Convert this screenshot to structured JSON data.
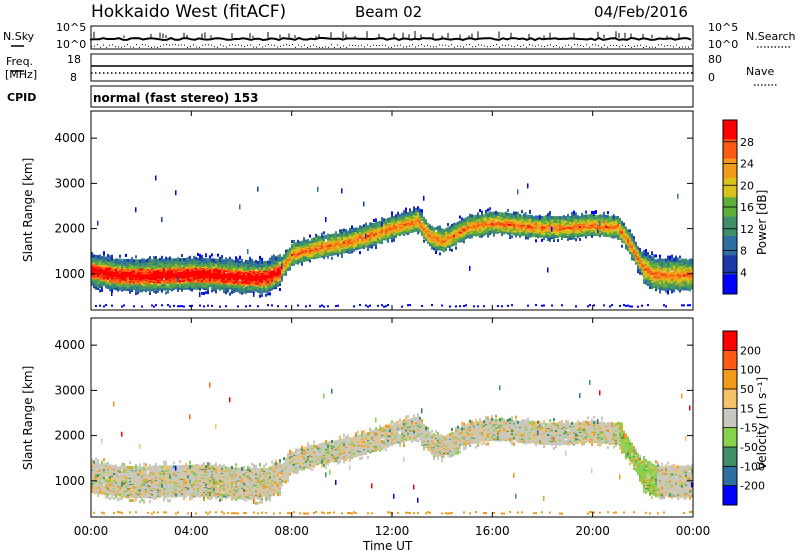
{
  "header": {
    "title": "Hokkaido West (fitACF)",
    "beam": "Beam 02",
    "date": "04/Feb/2016"
  },
  "top_panels": {
    "nsky_label": "N.Sky",
    "nsky_ticks": [
      "10^5",
      "10^0"
    ],
    "nsearch_label": "N.Search",
    "nsearch_ticks": [
      "10^5",
      "10^0"
    ],
    "freq_label_line1": "Freq.",
    "freq_label_line2": "[MHz]",
    "freq_ticks": [
      "18",
      "8"
    ],
    "nave_label": "Nave",
    "nave_ticks": [
      "80",
      "0"
    ],
    "cpid_label": "CPID",
    "cpid_text": "normal (fast stereo) 153"
  },
  "colors": {
    "power": [
      "#0000ff",
      "#1a3aa8",
      "#2f6ea0",
      "#3f8f6a",
      "#5fae3c",
      "#d9c21a",
      "#f29a1a",
      "#ff5a14",
      "#ff0000"
    ],
    "velocity": [
      "#ff0000",
      "#ff5a14",
      "#f29a1a",
      "#f7c16a",
      "#c8c8c0",
      "#86d24a",
      "#3f8f6a",
      "#2f6ea0",
      "#0000ff"
    ]
  },
  "chart_data": [
    {
      "type": "heatmap",
      "name": "power",
      "ylabel": "Slant Range [km]",
      "xlabel": "Time UT",
      "ylim": [
        200,
        4600
      ],
      "xlim": [
        0,
        24
      ],
      "y_ticks": [
        "1000",
        "2000",
        "3000",
        "4000"
      ],
      "x_ticks": [
        "00:00",
        "04:00",
        "08:00",
        "12:00",
        "16:00",
        "20:00",
        "00:00"
      ],
      "colorbar": {
        "label": "Power [dB]",
        "ticks": [
          "4",
          "8",
          "12",
          "16",
          "20",
          "24",
          "28"
        ],
        "range": [
          0,
          30
        ]
      },
      "echo_band": {
        "time_h": [
          0,
          1,
          2,
          3,
          4,
          5,
          6,
          7,
          7.5,
          8,
          9,
          10,
          11,
          12,
          13,
          13.5,
          14,
          15,
          16,
          17,
          18,
          19,
          20,
          21,
          21.5,
          22,
          22.5,
          23,
          24
        ],
        "center_km": [
          1050,
          950,
          930,
          950,
          970,
          950,
          900,
          900,
          1050,
          1400,
          1550,
          1650,
          1800,
          2000,
          2150,
          1800,
          1700,
          2000,
          2100,
          2050,
          2000,
          2000,
          2050,
          2000,
          1600,
          1100,
          950,
          950,
          950
        ]
      }
    },
    {
      "type": "heatmap",
      "name": "velocity",
      "ylabel": "Slant Range [km]",
      "xlabel": "Time UT",
      "ylim": [
        200,
        4600
      ],
      "xlim": [
        0,
        24
      ],
      "y_ticks": [
        "1000",
        "2000",
        "3000",
        "4000"
      ],
      "x_ticks": [
        "00:00",
        "04:00",
        "08:00",
        "12:00",
        "16:00",
        "20:00",
        "00:00"
      ],
      "colorbar": {
        "label": "Velocity [m s⁻¹]",
        "ticks": [
          "200",
          "100",
          "50",
          "15",
          "-15",
          "-50",
          "-100",
          "-200"
        ],
        "range": [
          -250,
          250
        ]
      }
    }
  ]
}
